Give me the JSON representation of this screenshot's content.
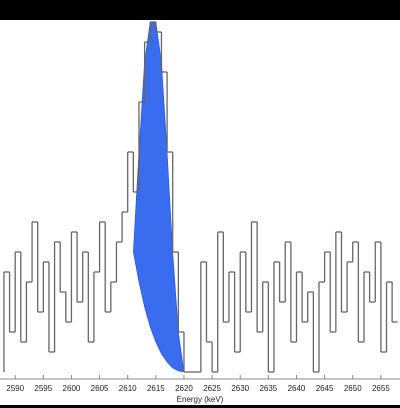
{
  "chart_data": {
    "type": "histogram",
    "x_label": "Energy (keV)",
    "bins": [
      2588,
      2589,
      2590,
      2591,
      2592,
      2593,
      2594,
      2595,
      2596,
      2597,
      2598,
      2599,
      2600,
      2601,
      2602,
      2603,
      2604,
      2605,
      2606,
      2607,
      2608,
      2609,
      2610,
      2611,
      2612,
      2613,
      2614,
      2615,
      2616,
      2617,
      2618,
      2619,
      2620,
      2621,
      2622,
      2623,
      2624,
      2625,
      2626,
      2627,
      2628,
      2629,
      2630,
      2631,
      2632,
      2633,
      2634,
      2635,
      2636,
      2637,
      2638,
      2639,
      2640,
      2641,
      2642,
      2643,
      2644,
      2645,
      2646,
      2647,
      2648,
      2649,
      2650,
      2651,
      2652,
      2653,
      2654,
      2655,
      2656,
      2657,
      2658
    ],
    "values": [
      10,
      4,
      12,
      3,
      9,
      15,
      6,
      11,
      2,
      13,
      8,
      5,
      14,
      7,
      12,
      3,
      10,
      15,
      6,
      9,
      13,
      16,
      22,
      18,
      27,
      33,
      35,
      34,
      30,
      22,
      12,
      4,
      0,
      0,
      0,
      11,
      3,
      0,
      14,
      5,
      10,
      2,
      12,
      6,
      15,
      4,
      9,
      0,
      11,
      7,
      13,
      3,
      10,
      5,
      8,
      0,
      9,
      12,
      4,
      14,
      6,
      11,
      13,
      3,
      10,
      7,
      13,
      2,
      9,
      5
    ],
    "color": "#666666",
    "fit": {
      "color": "#3a6cf0",
      "x": [
        2611,
        2612,
        2613,
        2614,
        2615,
        2616,
        2617,
        2618,
        2619,
        2620
      ],
      "upper": [
        12,
        22,
        31,
        35,
        35,
        31,
        22,
        12,
        4,
        0
      ],
      "lower": [
        12,
        9,
        6.5,
        4.5,
        3,
        1.8,
        1,
        0.4,
        0.1,
        0
      ]
    },
    "xlim": [
      2587.3,
      2658.4
    ],
    "ylim": [
      0,
      35
    ],
    "xticks": [
      2590,
      2595,
      2600,
      2605,
      2610,
      2615,
      2620,
      2625,
      2630,
      2635,
      2640,
      2645,
      2650,
      2655
    ]
  }
}
